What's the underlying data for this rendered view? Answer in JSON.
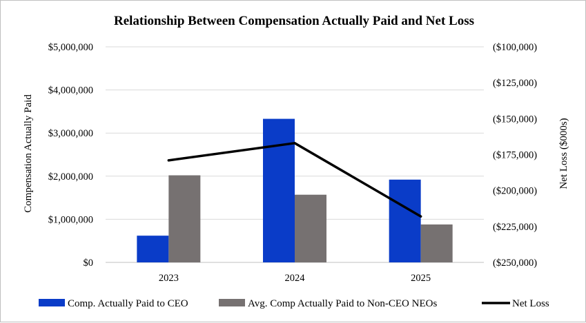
{
  "chart_data": {
    "type": "bar",
    "title": "Relationship Between Compensation Actually Paid and Net Loss",
    "categories": [
      "2023",
      "2024",
      "2025"
    ],
    "ylabel": "Compensation Actually Paid",
    "y2label": "Net Loss ($000s)",
    "ylim": [
      0,
      5000000
    ],
    "y_ticks": [
      0,
      1000000,
      2000000,
      3000000,
      4000000,
      5000000
    ],
    "y_tick_labels": [
      "$0",
      "$1,000,000",
      "$2,000,000",
      "$3,000,000",
      "$4,000,000",
      "$5,000,000"
    ],
    "y2lim": [
      -250000,
      -100000
    ],
    "y2_ticks": [
      -100000,
      -125000,
      -150000,
      -175000,
      -200000,
      -225000,
      -250000
    ],
    "y2_tick_labels": [
      "($100,000)",
      "($125,000)",
      "($150,000)",
      "($175,000)",
      "($200,000)",
      "($225,000)",
      "($250,000)"
    ],
    "series": [
      {
        "name": "Comp. Actually Paid to CEO",
        "type": "bar",
        "axis": "left",
        "color": "#0a3cc8",
        "values": [
          620000,
          3330000,
          1920000
        ]
      },
      {
        "name": "Avg. Comp Actually Paid to Non-CEO NEOs",
        "type": "bar",
        "axis": "left",
        "color": "#767171",
        "values": [
          2020000,
          1570000,
          880000
        ]
      },
      {
        "name": "Net Loss",
        "type": "line",
        "axis": "right",
        "color": "#000000",
        "values": [
          -179000,
          -167000,
          -218000
        ]
      }
    ],
    "grid": true,
    "legend": "bottom"
  }
}
